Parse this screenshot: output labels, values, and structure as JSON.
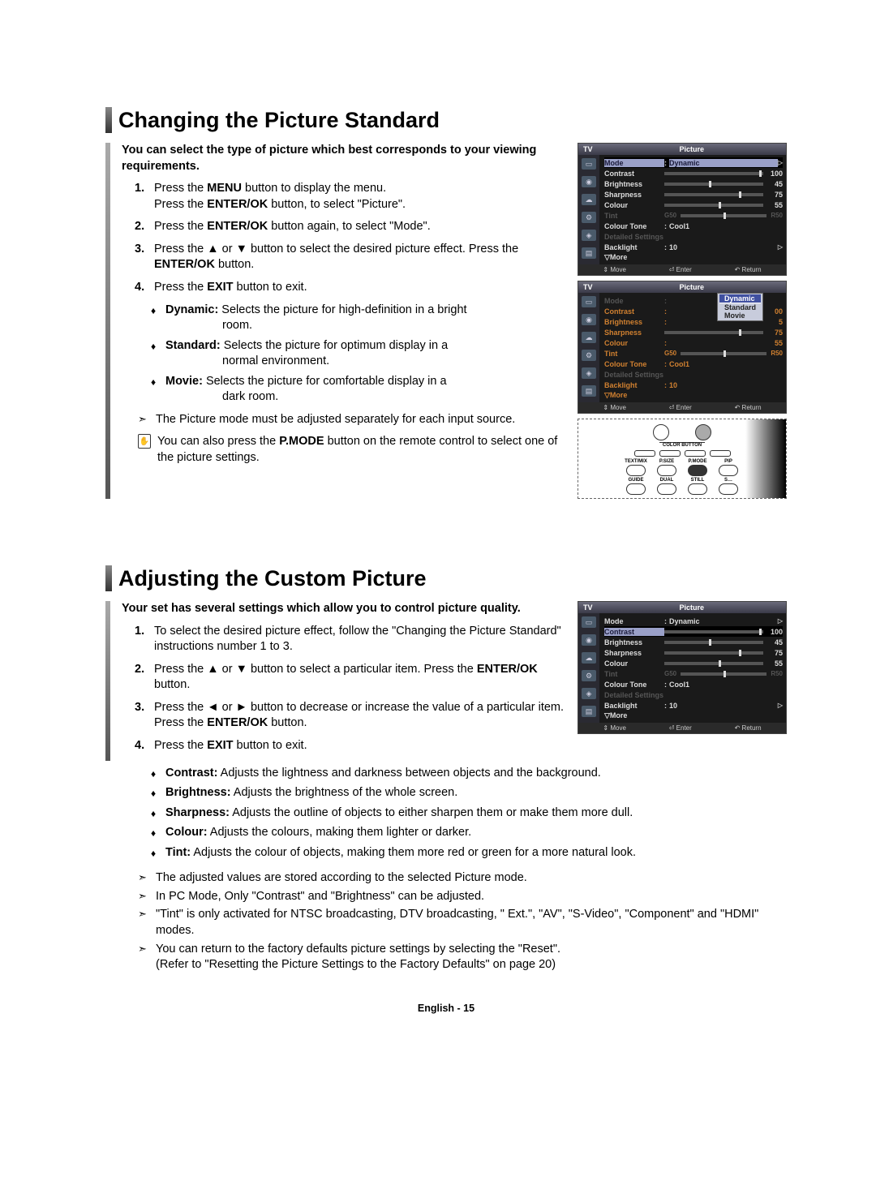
{
  "footer_text": "English - 15",
  "section1": {
    "heading": "Changing the Picture Standard",
    "intro": "You can select the type of picture which best corresponds to your viewing requirements.",
    "steps": [
      {
        "n": "1.",
        "html": "Press the <b>MENU</b> button to display the menu.<br>Press the <b>ENTER/OK</b> button, to select \"Picture\"."
      },
      {
        "n": "2.",
        "html": "Press the <b>ENTER/OK</b> button again, to select \"Mode\"."
      },
      {
        "n": "3.",
        "html": "Press the ▲ or ▼ button to select the desired picture effect. Press the <b>ENTER/OK</b> button."
      },
      {
        "n": "4.",
        "html": "Press the <b>EXIT</b> button to exit."
      }
    ],
    "modes": [
      {
        "html": "<b>Dynamic:</b> Selects the picture for high-definition in a bright<span class=\"indent-sub\">room.</span>"
      },
      {
        "html": "<b>Standard:</b> Selects the picture for optimum display in a<span class=\"indent-sub\">normal environment.</span>"
      },
      {
        "html": "<b>Movie:</b> Selects the picture for comfortable display in a<span class=\"indent-sub\">dark room.</span>"
      }
    ],
    "arrows": [
      "The Picture mode must be adjusted separately for each input source."
    ],
    "remote_note_html": "You can also press the <b>P.MODE</b> button on the remote control to select one of the picture settings."
  },
  "section2": {
    "heading": "Adjusting the Custom Picture",
    "intro": "Your set has several settings which allow you to control picture quality.",
    "steps": [
      {
        "n": "1.",
        "html": "To select the desired picture effect, follow the \"Changing the Picture Standard\" instructions number 1 to 3."
      },
      {
        "n": "2.",
        "html": "Press the ▲ or ▼ button to select a particular item. Press the <b>ENTER/OK</b> button."
      },
      {
        "n": "3.",
        "html": "Press the ◄ or ► button to decrease or increase the value of a particular item. Press the <b>ENTER/OK</b> button."
      },
      {
        "n": "4.",
        "html": "Press the <b>EXIT</b> button to exit."
      }
    ],
    "defs": [
      {
        "html": "<b>Contrast:</b> Adjusts the lightness and darkness between objects and the background."
      },
      {
        "html": "<b>Brightness:</b> Adjusts the brightness of the whole screen."
      },
      {
        "html": "<b>Sharpness:</b> Adjusts the outline of objects to either sharpen them or make them more dull."
      },
      {
        "html": "<b>Colour:</b> Adjusts the colours, making them lighter or darker."
      },
      {
        "html": "<b>Tint:</b> Adjusts the colour of objects, making them more red or green for a more natural look."
      }
    ],
    "arrows": [
      "The adjusted values are stored according to the selected Picture mode.",
      "In PC Mode, Only \"Contrast\" and \"Brightness\" can be adjusted.",
      "\"Tint\" is only activated for NTSC broadcasting, DTV broadcasting, \" Ext.\", \"AV\", \"S-Video\", \"Component\" and \"HDMI\" modes.",
      "You can return to the factory defaults picture settings by selecting the \"Reset\".<br>(Refer to \"Resetting the Picture Settings to the Factory Defaults\" on page 20)"
    ]
  },
  "osd1": {
    "tv": "TV",
    "title": "Picture",
    "mode_highlight": true,
    "rows": [
      {
        "lbl": "Mode",
        "type": "text",
        "val": "Dynamic",
        "tri": true,
        "hl": true
      },
      {
        "lbl": "Contrast",
        "type": "slider",
        "pos": 96,
        "num": "100"
      },
      {
        "lbl": "Brightness",
        "type": "slider",
        "pos": 45,
        "num": "45"
      },
      {
        "lbl": "Sharpness",
        "type": "slider",
        "pos": 75,
        "num": "75"
      },
      {
        "lbl": "Colour",
        "type": "slider",
        "pos": 55,
        "num": "55"
      },
      {
        "lbl": "Tint",
        "type": "tint",
        "dim": true,
        "g": "G50",
        "r": "R50"
      },
      {
        "lbl": "Colour Tone",
        "type": "text",
        "val": "Cool1"
      },
      {
        "lbl": "Detailed Settings",
        "type": "blank",
        "dim": true
      },
      {
        "lbl": "Backlight",
        "type": "text",
        "val": "10",
        "tri": true
      },
      {
        "lbl": "▽More",
        "type": "blank"
      }
    ],
    "footer": [
      "⇕ Move",
      "⏎ Enter",
      "↶ Return"
    ]
  },
  "osd2": {
    "tv": "TV",
    "title": "Picture",
    "dropdown": [
      "Dynamic",
      "Standard",
      "Movie"
    ],
    "rows": [
      {
        "lbl": "Mode",
        "type": "text",
        "val": "",
        "dim": true
      },
      {
        "lbl": "Contrast",
        "type": "text",
        "val": "",
        "orange": true,
        "num": "00"
      },
      {
        "lbl": "Brightness",
        "type": "text",
        "val": "",
        "orange": true,
        "num": "5"
      },
      {
        "lbl": "Sharpness",
        "type": "slider",
        "pos": 75,
        "num": "75",
        "orange": true
      },
      {
        "lbl": "Colour",
        "type": "text",
        "val": "",
        "orange": true,
        "num": "55"
      },
      {
        "lbl": "Tint",
        "type": "tint",
        "dim": true,
        "g": "G50",
        "r": "R50",
        "orange": true
      },
      {
        "lbl": "Colour Tone",
        "type": "text",
        "val": "Cool1",
        "orange": true
      },
      {
        "lbl": "Detailed Settings",
        "type": "blank",
        "dim": true
      },
      {
        "lbl": "Backlight",
        "type": "text",
        "val": "10",
        "orange": true
      },
      {
        "lbl": "▽More",
        "type": "blank",
        "orange": true
      }
    ],
    "footer": [
      "⇕ Move",
      "⏎ Enter",
      "↶ Return"
    ]
  },
  "osd3": {
    "tv": "TV",
    "title": "Picture",
    "rows": [
      {
        "lbl": "Mode",
        "type": "text",
        "val": "Dynamic",
        "tri": true
      },
      {
        "lbl": "Contrast",
        "type": "slider",
        "pos": 96,
        "num": "100",
        "hl": true
      },
      {
        "lbl": "Brightness",
        "type": "slider",
        "pos": 45,
        "num": "45"
      },
      {
        "lbl": "Sharpness",
        "type": "slider",
        "pos": 75,
        "num": "75"
      },
      {
        "lbl": "Colour",
        "type": "slider",
        "pos": 55,
        "num": "55"
      },
      {
        "lbl": "Tint",
        "type": "tint",
        "dim": true,
        "g": "G50",
        "r": "R50"
      },
      {
        "lbl": "Colour Tone",
        "type": "text",
        "val": "Cool1"
      },
      {
        "lbl": "Detailed Settings",
        "type": "blank",
        "dim": true
      },
      {
        "lbl": "Backlight",
        "type": "text",
        "val": "10",
        "tri": true
      },
      {
        "lbl": "▽More",
        "type": "blank"
      }
    ],
    "footer": [
      "⇕ Move",
      "⏎ Enter",
      "↶ Return"
    ]
  },
  "remote": {
    "color_label": "COLOR BUTTON",
    "row1": [
      "TEXT/MIX",
      "P.SIZE",
      "P.MODE",
      "PIP"
    ],
    "row2": [
      "GUIDE",
      "DUAL",
      "STILL",
      "S…"
    ]
  }
}
